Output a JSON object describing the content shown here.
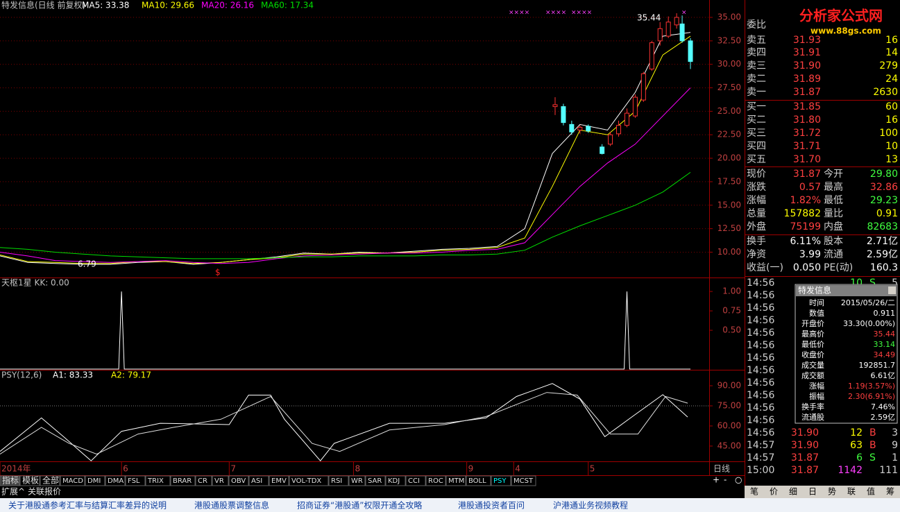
{
  "header": {
    "title": "特发信息(日线 前复权)",
    "ma": [
      {
        "label": "MA5: 33.38",
        "color": "#ffffff"
      },
      {
        "label": "MA10: 29.66",
        "color": "#ffff00"
      },
      {
        "label": "MA20: 26.16",
        "color": "#ff00ff"
      },
      {
        "label": "MA60: 17.34",
        "color": "#00e000"
      }
    ]
  },
  "price_chart": {
    "xlim": [
      0,
      257
    ],
    "ylim": [
      7.3,
      36.85
    ],
    "grid": true,
    "yticks": [
      {
        "value": 35,
        "label": "35.00"
      },
      {
        "value": 32.5,
        "label": "32.50"
      },
      {
        "value": 30,
        "label": "30.00"
      },
      {
        "value": 27.5,
        "label": "27.50"
      },
      {
        "value": 25,
        "label": "25.00"
      },
      {
        "value": 22.5,
        "label": "22.50"
      },
      {
        "value": 20,
        "label": "20.00"
      },
      {
        "value": 17.5,
        "label": "17.50"
      },
      {
        "value": 15,
        "label": "15.00"
      },
      {
        "value": 12.5,
        "label": "12.50"
      },
      {
        "value": 10,
        "label": "10.00"
      }
    ],
    "x": [
      0,
      10,
      20,
      30,
      40,
      50,
      60,
      70,
      80,
      90,
      100,
      110,
      120,
      130,
      140,
      150,
      160,
      170,
      180,
      190,
      200,
      210,
      220,
      230,
      240,
      250
    ],
    "series": [
      {
        "color": "#ffffff",
        "values": [
          9.6,
          8.9,
          8.8,
          8.7,
          8.7,
          8.9,
          9.0,
          8.7,
          8.9,
          9.2,
          9.5,
          9.9,
          9.8,
          10.0,
          9.9,
          10.1,
          10.3,
          10.4,
          10.6,
          12.5,
          20.5,
          23.6,
          23.0,
          27.0,
          33.0,
          33.4
        ]
      },
      {
        "color": "#ffff00",
        "values": [
          9.7,
          9.0,
          8.9,
          8.8,
          8.8,
          9.0,
          9.0,
          8.8,
          8.9,
          9.2,
          9.4,
          9.8,
          9.8,
          9.9,
          9.9,
          10.0,
          10.2,
          10.3,
          10.5,
          11.5,
          17.0,
          23.0,
          22.5,
          25.0,
          31.0,
          33.0
        ]
      },
      {
        "color": "#ff00ff",
        "values": [
          10.0,
          9.6,
          9.1,
          9.0,
          8.9,
          9.0,
          9.1,
          8.9,
          8.8,
          8.9,
          9.3,
          9.6,
          9.7,
          9.8,
          9.9,
          9.9,
          10.0,
          10.2,
          10.3,
          11.0,
          14.0,
          17.0,
          19.5,
          21.5,
          24.5,
          27.5
        ]
      },
      {
        "color": "#00e000",
        "values": [
          10.5,
          10.3,
          10.0,
          9.8,
          9.6,
          9.5,
          9.4,
          9.3,
          9.3,
          9.3,
          9.4,
          9.5,
          9.5,
          9.6,
          9.6,
          9.6,
          9.7,
          9.7,
          9.8,
          10.2,
          11.6,
          12.8,
          13.9,
          15.0,
          16.4,
          18.5
        ]
      }
    ],
    "candles": {
      "up_color": "#ff3232",
      "down_color": "#54ffff",
      "x": [
        201,
        204,
        207,
        210,
        213,
        218,
        221,
        224,
        227,
        230,
        233,
        236,
        239,
        242,
        245,
        247,
        250
      ],
      "open": [
        25.5,
        25.5,
        23.6,
        23.0,
        23.4,
        21.2,
        21.5,
        22.6,
        23.5,
        24.5,
        26.2,
        29.5,
        32.5,
        33.0,
        34.2,
        34.3,
        32.5
      ],
      "high": [
        26.5,
        25.8,
        24.0,
        23.5,
        23.6,
        21.5,
        22.8,
        24.0,
        25.3,
        26.8,
        29.2,
        32.5,
        34.5,
        35.1,
        35.44,
        35.2,
        32.8
      ],
      "low": [
        24.6,
        23.5,
        22.5,
        22.6,
        22.7,
        20.4,
        21.3,
        22.3,
        23.3,
        24.3,
        26.0,
        29.3,
        32.0,
        32.8,
        33.8,
        32.3,
        29.5
      ],
      "close": [
        25.7,
        23.8,
        22.8,
        23.3,
        22.9,
        20.5,
        22.5,
        23.5,
        24.8,
        26.5,
        29.0,
        32.3,
        33.8,
        34.5,
        35.0,
        32.5,
        30.3
      ]
    },
    "high_label": "35.44",
    "low_label": "6.79",
    "signal": "$",
    "markers": [
      "××××",
      "××××",
      "××××",
      "×"
    ]
  },
  "x_axis": {
    "ticks": [
      {
        "value": 0,
        "label": "2014年"
      },
      {
        "value": 44,
        "label": "6"
      },
      {
        "value": 83,
        "label": "7"
      },
      {
        "value": 128,
        "label": "8"
      },
      {
        "value": 169,
        "label": "9"
      },
      {
        "value": 186,
        "label": "4"
      },
      {
        "value": 213,
        "label": "5"
      }
    ],
    "period": "日线"
  },
  "kk_panel": {
    "title": "天枢1星 KK: 0.00",
    "ylim": [
      0,
      1.18
    ],
    "yticks": [
      {
        "value": 1,
        "label": "1.00"
      },
      {
        "value": 0.75,
        "label": "0.75"
      },
      {
        "value": 0.5,
        "label": "0.50"
      }
    ],
    "x": [
      0,
      43,
      44,
      45,
      226,
      227,
      228,
      250
    ],
    "values": [
      0,
      0,
      1,
      0,
      0,
      1,
      0,
      0
    ],
    "color": "#ffffff"
  },
  "psy_panel": {
    "title": "PSY(12,6)",
    "a1": "A1: 83.33",
    "a2": "A2: 79.17",
    "ylim": [
      33.6,
      101.9
    ],
    "reference": 75,
    "yticks": [
      {
        "value": 90,
        "label": "90.00"
      },
      {
        "value": 75,
        "label": "75.00"
      },
      {
        "value": 60,
        "label": "60.00"
      },
      {
        "value": 45,
        "label": "45.00"
      }
    ],
    "series": [
      {
        "color": "#ffffff",
        "x": [
          0,
          15,
          23,
          33,
          44,
          58,
          83,
          90,
          98,
          103,
          116,
          121,
          141,
          161,
          176,
          187,
          200,
          210,
          219,
          229,
          240,
          249
        ],
        "values": [
          41,
          66,
          52,
          34,
          56,
          62,
          61,
          83,
          83,
          65,
          34,
          47,
          62,
          62,
          66,
          82,
          91.67,
          80,
          52,
          67,
          83.33,
          66.67
        ]
      },
      {
        "color": "#dddddd",
        "x": [
          0,
          15,
          25,
          35,
          50,
          63,
          80,
          98,
          113,
          123,
          141,
          161,
          176,
          198,
          209,
          221,
          231,
          241,
          249
        ],
        "values": [
          39,
          59,
          47,
          39,
          54,
          59,
          65,
          82,
          47,
          41,
          57,
          61,
          67,
          85,
          83,
          54,
          54,
          82,
          77
        ]
      }
    ]
  },
  "toolbar": {
    "tabs": [
      "指标",
      "模板",
      "全部",
      "MACD",
      "DMI",
      "DMA",
      "FSL",
      "TRIX",
      "BRAR",
      "CR",
      "VR",
      "OBV",
      "ASI",
      "EMV",
      "VOL-TDX",
      "RSI",
      "WR",
      "SAR",
      "KDJ",
      "CCI",
      "ROC",
      "MTM",
      "BOLL",
      "PSY",
      "MCST"
    ],
    "controls": [
      "+",
      "-",
      "○"
    ],
    "sub": [
      "扩展^",
      "关联报价"
    ]
  },
  "news": [
    "关于港股通参考汇率与结算汇率差异的说明",
    "港股通股票调整信息",
    "招商证券“港股通”权限开通全攻略",
    "港股通投资者百问",
    "沪港通业务视频教程"
  ],
  "logo": {
    "name": "分析家公式网",
    "url": "www.88gs.com"
  },
  "order_book": {
    "top": "委比",
    "rows": [
      {
        "label": "卖五",
        "price": "31.93",
        "volume": "16"
      },
      {
        "label": "卖四",
        "price": "31.91",
        "volume": "14"
      },
      {
        "label": "卖三",
        "price": "31.90",
        "volume": "279"
      },
      {
        "label": "卖二",
        "price": "31.89",
        "volume": "24"
      },
      {
        "label": "卖一",
        "price": "31.87",
        "volume": "2630"
      },
      {
        "label": "买一",
        "price": "31.85",
        "volume": "60"
      },
      {
        "label": "买二",
        "price": "31.80",
        "volume": "16"
      },
      {
        "label": "买三",
        "price": "31.72",
        "volume": "100"
      },
      {
        "label": "买四",
        "price": "31.71",
        "volume": "10"
      },
      {
        "label": "买五",
        "price": "31.70",
        "volume": "13"
      }
    ]
  },
  "quote": [
    [
      {
        "text": "现价"
      },
      {
        "text": "31.87",
        "color": "#ff4040"
      },
      {
        "text": "今开"
      },
      {
        "text": "29.80",
        "color": "#40ff40"
      }
    ],
    [
      {
        "text": "涨跌"
      },
      {
        "text": "0.57",
        "color": "#ff4040"
      },
      {
        "text": "最高"
      },
      {
        "text": "32.86",
        "color": "#ff4040"
      }
    ],
    [
      {
        "text": "涨幅"
      },
      {
        "text": "1.82%",
        "color": "#ff4040"
      },
      {
        "text": "最低"
      },
      {
        "text": "29.23",
        "color": "#40ff40"
      }
    ],
    [
      {
        "text": "总量"
      },
      {
        "text": "157882",
        "color": "#ffff00"
      },
      {
        "text": "量比"
      },
      {
        "text": "0.91",
        "color": "#ffff00"
      }
    ],
    [
      {
        "text": "外盘"
      },
      {
        "text": "75199",
        "color": "#ff4040"
      },
      {
        "text": "内盘"
      },
      {
        "text": "82683",
        "color": "#40ff40"
      }
    ],
    [
      {
        "text": "换手"
      },
      {
        "text": "6.11%",
        "color": "#ffffff"
      },
      {
        "text": "股本"
      },
      {
        "text": "2.71亿",
        "color": "#ffffff"
      }
    ],
    [
      {
        "text": "净资"
      },
      {
        "text": "3.99",
        "color": "#ffffff"
      },
      {
        "text": "流通"
      },
      {
        "text": "2.59亿",
        "color": "#ffffff"
      }
    ],
    [
      {
        "text": "收益(一)"
      },
      {
        "text": "0.050",
        "color": "#ffffff"
      },
      {
        "text": "PE(动)"
      },
      {
        "text": "160.3",
        "color": "#ffffff"
      }
    ]
  ],
  "trades": [
    {
      "time": "14:56",
      "volume": "10",
      "side": "S",
      "count": "5"
    },
    {
      "time": "14:56"
    },
    {
      "time": "14:56"
    },
    {
      "time": "14:56"
    },
    {
      "time": "14:56"
    },
    {
      "time": "14:56"
    },
    {
      "time": "14:56"
    },
    {
      "time": "14:56"
    },
    {
      "time": "14:56"
    },
    {
      "time": "14:56"
    },
    {
      "time": "14:56"
    },
    {
      "time": "14:56"
    },
    {
      "time": "14:56",
      "price": "31.90",
      "volume": "12",
      "side": "B",
      "count": "3"
    },
    {
      "time": "14:57",
      "price": "31.90",
      "volume": "63",
      "side": "B",
      "count": "9"
    },
    {
      "time": "14:57",
      "price": "31.87",
      "volume": "6",
      "side": "S",
      "count": "1"
    },
    {
      "time": "15:00",
      "price": "31.87",
      "volume": "1142",
      "count": "111"
    }
  ],
  "popup": {
    "title": "特发信息",
    "rows": [
      {
        "label": "时间",
        "value": "2015/05/26/二",
        "color": "#ffffff"
      },
      {
        "label": "数值",
        "value": "0.911",
        "color": "#ffffff"
      },
      {
        "label": "开盘价",
        "value": "33.30(0.00%)",
        "color": "#ffffff"
      },
      {
        "label": "最高价",
        "value": "35.44",
        "color": "#ff4040"
      },
      {
        "label": "最低价",
        "value": "33.14",
        "color": "#40ff40"
      },
      {
        "label": "收盘价",
        "value": "34.49",
        "color": "#ff4040"
      },
      {
        "label": "成交量",
        "value": "192851.7",
        "color": "#ffffff"
      },
      {
        "label": "成交额",
        "value": "6.61亿",
        "color": "#ffffff"
      },
      {
        "label": "涨幅",
        "value": "1.19(3.57%)",
        "color": "#ff4040"
      },
      {
        "label": "振幅",
        "value": "2.30(6.91%)",
        "color": "#ff4040"
      },
      {
        "label": "换手率",
        "value": "7.46%",
        "color": "#ffffff"
      },
      {
        "label": "流通股",
        "value": "2.59亿",
        "color": "#ffffff"
      }
    ]
  },
  "bottom_tabs": [
    "笔",
    "价",
    "细",
    "日",
    "势",
    "联",
    "值",
    "筹"
  ]
}
